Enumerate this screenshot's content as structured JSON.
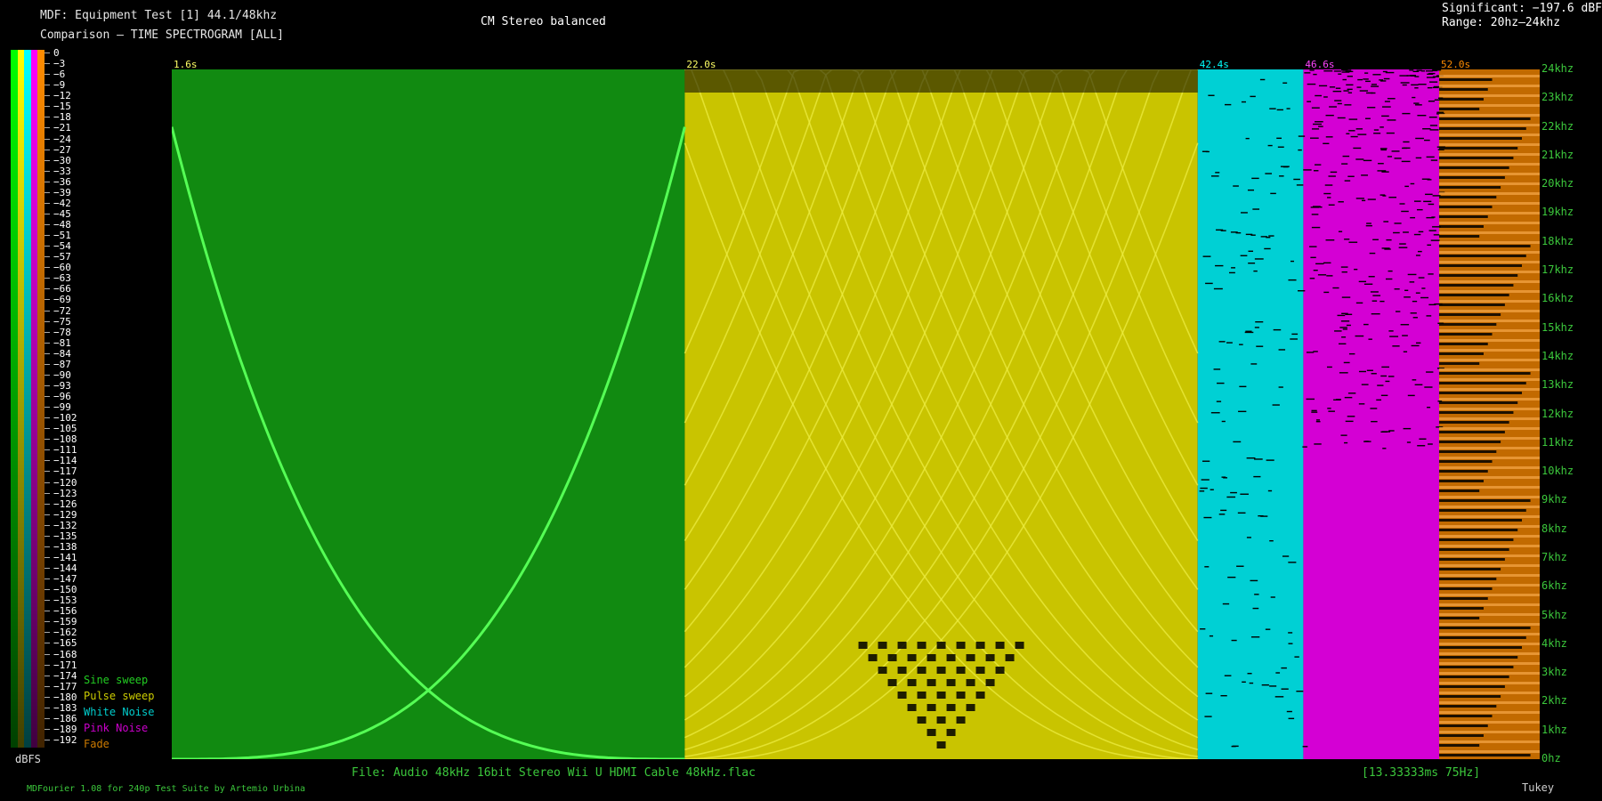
{
  "header": {
    "line1": "MDF: Equipment Test [1] 44.1/48khz",
    "line2": "Comparison — TIME SPECTROGRAM [ALL]",
    "channel_mode": "CM Stereo balanced",
    "significant": "Significant: −197.6 dBFS",
    "range": "Range: 20hz–24khz"
  },
  "scale": {
    "unit": "dBFS",
    "ticks": [
      "0",
      "−3",
      "−6",
      "−9",
      "−12",
      "−15",
      "−18",
      "−21",
      "−24",
      "−27",
      "−30",
      "−33",
      "−36",
      "−39",
      "−42",
      "−45",
      "−48",
      "−51",
      "−54",
      "−57",
      "−60",
      "−63",
      "−66",
      "−69",
      "−72",
      "−75",
      "−78",
      "−81",
      "−84",
      "−87",
      "−90",
      "−93",
      "−96",
      "−99",
      "−102",
      "−105",
      "−108",
      "−111",
      "−114",
      "−117",
      "−120",
      "−123",
      "−126",
      "−129",
      "−132",
      "−135",
      "−138",
      "−141",
      "−144",
      "−147",
      "−150",
      "−153",
      "−156",
      "−159",
      "−162",
      "−165",
      "−168",
      "−171",
      "−174",
      "−177",
      "−180",
      "−183",
      "−186",
      "−189",
      "−192"
    ],
    "bar_colors": [
      "#00ff00",
      "#ffff00",
      "#00ffff",
      "#ff00ff",
      "#ff8c00"
    ]
  },
  "legend": [
    {
      "label": "Sine sweep",
      "color": "#22cc22"
    },
    {
      "label": "Pulse sweep",
      "color": "#cccc00"
    },
    {
      "label": "White Noise",
      "color": "#00cccc"
    },
    {
      "label": "Pink Noise",
      "color": "#cc00cc"
    },
    {
      "label": "Fade",
      "color": "#cc7a00"
    }
  ],
  "chart_data": {
    "type": "heatmap",
    "title": "TIME SPECTROGRAM [ALL]",
    "y_unit": "khz",
    "ylim": [
      0,
      24
    ],
    "y_ticks": [
      "0hz",
      "1khz",
      "2khz",
      "3khz",
      "4khz",
      "5khz",
      "6khz",
      "7khz",
      "8khz",
      "9khz",
      "10khz",
      "11khz",
      "12khz",
      "13khz",
      "14khz",
      "15khz",
      "16khz",
      "17khz",
      "18khz",
      "19khz",
      "20khz",
      "21khz",
      "22khz",
      "23khz",
      "24khz"
    ],
    "sections": [
      {
        "name": "Sine sweep",
        "start": "1.6s",
        "start_s": 1.6,
        "end_s": 22.0,
        "color": "#118a11",
        "label_color": "#ffff66"
      },
      {
        "name": "Pulse sweep",
        "start": "22.0s",
        "start_s": 22.0,
        "end_s": 42.4,
        "color": "#c9c400",
        "label_color": "#ffff66"
      },
      {
        "name": "White Noise",
        "start": "42.4s",
        "start_s": 42.4,
        "end_s": 46.6,
        "color": "#00d0d4",
        "label_color": "#00ffff"
      },
      {
        "name": "Pink Noise",
        "start": "46.6s",
        "start_s": 46.6,
        "end_s": 52.0,
        "color": "#d400d4",
        "label_color": "#ff44ff"
      },
      {
        "name": "Fade",
        "start": "52.0s",
        "start_s": 52.0,
        "end_s": 56.0,
        "color": "#c26a00",
        "label_color": "#ff8c00"
      }
    ]
  },
  "footer": {
    "file": "File: Audio    48kHz 16bit Stereo Wii U HDMI Cable 48kHz.flac",
    "frame": "[13.33333ms 75Hz]",
    "credit": "MDFourier 1.08 for 240p Test Suite by Artemio Urbina",
    "window": "Tukey"
  }
}
